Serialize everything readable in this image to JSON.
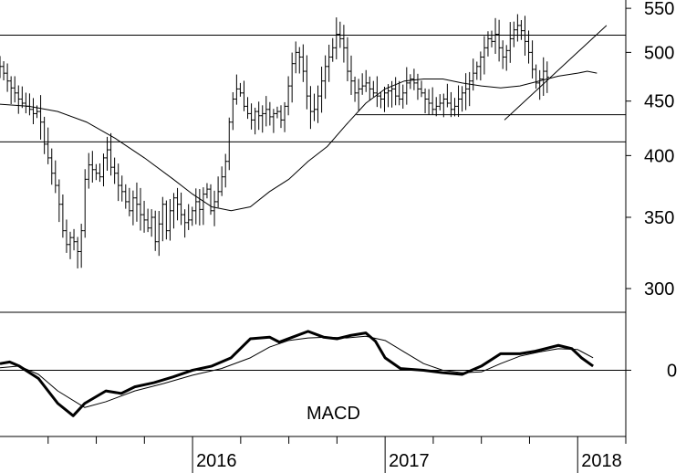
{
  "chart_data": [
    {
      "type": "ohlc",
      "panel": "price",
      "scale": "log",
      "ylim": [
        285,
        560
      ],
      "y_ticks": [
        300,
        350,
        400,
        450,
        500,
        550
      ],
      "y_tick_labels": [
        "300",
        "350",
        "400",
        "450",
        "500",
        "550"
      ],
      "x_range": [
        2015.0,
        2018.25
      ],
      "x_ticks": [
        2016,
        2017,
        2018
      ],
      "x_tick_labels": [
        "2016",
        "2017",
        "2018"
      ],
      "bar_step": 0.0192,
      "weekly_close": [
        485,
        478,
        470,
        463,
        458,
        452,
        448,
        445,
        442,
        438,
        440,
        430,
        410,
        398,
        385,
        375,
        360,
        340,
        330,
        335,
        332,
        325,
        340,
        380,
        392,
        388,
        385,
        382,
        398,
        405,
        390,
        385,
        375,
        370,
        362,
        355,
        365,
        360,
        352,
        348,
        342,
        350,
        332,
        345,
        360,
        340,
        355,
        365,
        360,
        352,
        346,
        348,
        355,
        362,
        356,
        368,
        372,
        355,
        362,
        370,
        382,
        395,
        430,
        452,
        462,
        458,
        445,
        438,
        432,
        440,
        436,
        438,
        442,
        435,
        438,
        440,
        432,
        445,
        465,
        488,
        500,
        495,
        480,
        455,
        440,
        442,
        455,
        470,
        485,
        495,
        505,
        520,
        515,
        505,
        480,
        470,
        458,
        462,
        465,
        468,
        462,
        458,
        455,
        452,
        458,
        460,
        462,
        455,
        452,
        458,
        468,
        472,
        468,
        462,
        458,
        452,
        448,
        442,
        445,
        448,
        452,
        448,
        442,
        445,
        452,
        458,
        462,
        470,
        478,
        485,
        495,
        505,
        515,
        512,
        520,
        505,
        495,
        502,
        515,
        525,
        530,
        524,
        512,
        500,
        482,
        468,
        472,
        480,
        474
      ],
      "horizontal_lines": [
        {
          "level": 519,
          "x_start": 2015.0,
          "x_end": 2018.25
        },
        {
          "level": 412,
          "x_start": 2015.0,
          "x_end": 2018.25
        },
        {
          "level": 437,
          "x_start": 2016.85,
          "x_end": 2018.25
        }
      ],
      "trendlines": [
        {
          "x": [
            2017.62,
            2018.15
          ],
          "y": [
            432,
            530
          ]
        }
      ],
      "moving_average": {
        "x": [
          2015.0,
          2015.15,
          2015.3,
          2015.45,
          2015.6,
          2015.75,
          2015.9,
          2016.0,
          2016.1,
          2016.2,
          2016.3,
          2016.4,
          2016.5,
          2016.6,
          2016.7,
          2016.8,
          2016.9,
          2017.0,
          2017.1,
          2017.2,
          2017.3,
          2017.4,
          2017.5,
          2017.6,
          2017.7,
          2017.8,
          2017.9,
          2018.0,
          2018.05,
          2018.1
        ],
        "y": [
          447,
          445,
          440,
          430,
          415,
          398,
          380,
          368,
          358,
          355,
          358,
          370,
          380,
          395,
          408,
          428,
          448,
          462,
          470,
          472,
          472,
          468,
          465,
          463,
          465,
          470,
          475,
          478,
          480,
          478
        ]
      }
    },
    {
      "type": "line",
      "panel": "indicator",
      "label": "MACD",
      "ylim": [
        -8,
        7
      ],
      "y_ticks": [
        0
      ],
      "y_tick_labels": [
        "0"
      ],
      "x_range": [
        2015.0,
        2018.25
      ],
      "zero_line": 0,
      "series": [
        {
          "style": "thick",
          "x": [
            2015.0,
            2015.05,
            2015.1,
            2015.2,
            2015.3,
            2015.38,
            2015.44,
            2015.55,
            2015.63,
            2015.7,
            2015.8,
            2015.9,
            2016.0,
            2016.1,
            2016.2,
            2016.3,
            2016.4,
            2016.45,
            2016.52,
            2016.6,
            2016.68,
            2016.75,
            2016.82,
            2016.9,
            2016.95,
            2017.0,
            2017.08,
            2017.2,
            2017.3,
            2017.4,
            2017.5,
            2017.6,
            2017.7,
            2017.78,
            2017.9,
            2017.97,
            2018.02,
            2018.08
          ],
          "y": [
            0.8,
            1.0,
            0.5,
            -1.0,
            -4.0,
            -5.5,
            -4.0,
            -2.5,
            -2.8,
            -2.0,
            -1.5,
            -0.8,
            0.0,
            0.5,
            1.5,
            3.8,
            4.0,
            3.4,
            4.0,
            4.7,
            4.0,
            3.8,
            4.2,
            4.5,
            3.5,
            1.5,
            0.2,
            0.0,
            -0.3,
            -0.5,
            0.5,
            2.0,
            2.0,
            2.3,
            3.0,
            2.6,
            1.5,
            0.5
          ]
        },
        {
          "style": "thin",
          "x": [
            2015.0,
            2015.1,
            2015.2,
            2015.3,
            2015.44,
            2015.55,
            2015.7,
            2015.85,
            2016.0,
            2016.15,
            2016.3,
            2016.4,
            2016.5,
            2016.6,
            2016.7,
            2016.8,
            2016.9,
            2017.0,
            2017.1,
            2017.2,
            2017.3,
            2017.4,
            2017.5,
            2017.6,
            2017.7,
            2017.8,
            2017.9,
            2018.0,
            2018.08
          ],
          "y": [
            0.3,
            0.5,
            -0.5,
            -2.5,
            -4.5,
            -3.8,
            -2.5,
            -1.6,
            -0.6,
            0.2,
            1.5,
            2.8,
            3.6,
            3.9,
            4.0,
            3.9,
            4.1,
            3.6,
            2.2,
            0.8,
            0.0,
            -0.3,
            -0.2,
            0.8,
            1.7,
            2.2,
            2.6,
            2.5,
            1.5
          ]
        }
      ]
    }
  ]
}
